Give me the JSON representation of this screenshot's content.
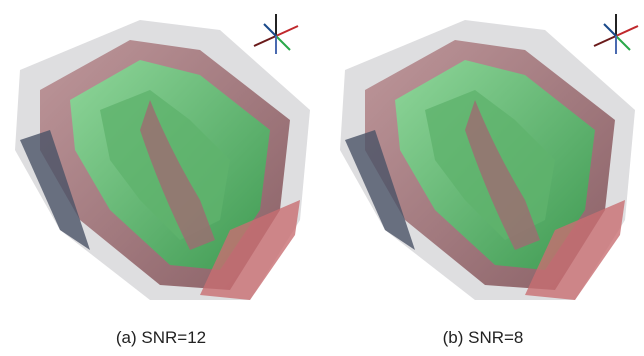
{
  "panels": [
    {
      "caption": "(a) SNR=12"
    },
    {
      "caption": "(b) SNR=8"
    }
  ]
}
